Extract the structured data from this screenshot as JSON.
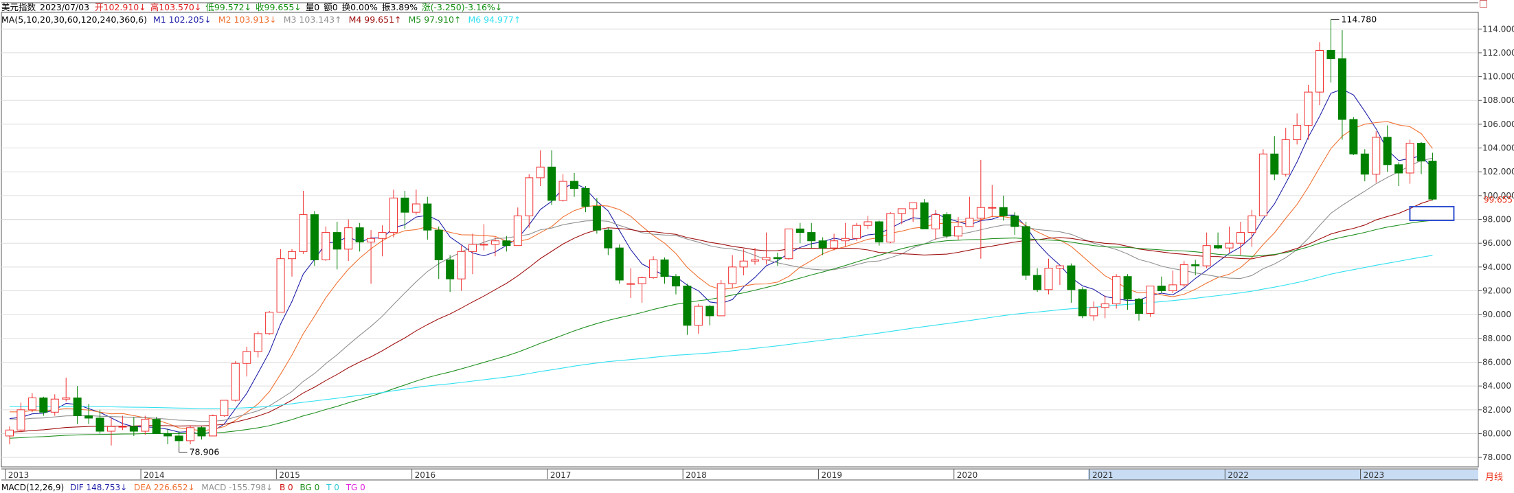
{
  "header": {
    "instrument": "美元指数",
    "date": "2023/07/03",
    "open": "开102.910↓",
    "high": "高103.570↓",
    "low": "低99.572↓",
    "close": "收99.655↓",
    "volume": "量0",
    "amount": "额0",
    "turnover": "换0.00%",
    "amplitude": "振3.89%",
    "change": "涨(-3.250)-3.16%↓"
  },
  "ma_legend": {
    "label": "MA(5,10,20,30,60,120,240,360,6)",
    "items": [
      {
        "text": "M1 102.205↓",
        "color": "#1f1fa8"
      },
      {
        "text": "M2 103.913↓",
        "color": "#f07030"
      },
      {
        "text": "M3 103.143↑",
        "color": "#909090"
      },
      {
        "text": "M4 99.651↑",
        "color": "#a01010"
      },
      {
        "text": "M5 97.910↑",
        "color": "#209020"
      },
      {
        "text": "M6 94.977↑",
        "color": "#30e0f0"
      }
    ]
  },
  "macd_legend": {
    "label": "MACD(12,26,9)",
    "items": [
      {
        "text": "DIF 148.753↓",
        "color": "#1f1fa8"
      },
      {
        "text": "DEA 226.652↓",
        "color": "#f07030"
      },
      {
        "text": "MACD -155.798↓",
        "color": "#909090"
      },
      {
        "text": "B 0",
        "color": "#d01010"
      },
      {
        "text": "BG 0",
        "color": "#209020"
      },
      {
        "text": "T 0",
        "color": "#30c8d8"
      },
      {
        "text": "TG 0",
        "color": "#e020e0"
      }
    ]
  },
  "period": "月线",
  "colors": {
    "up": "#f03030",
    "down": "#008000",
    "grid": "#dddddd",
    "axis": "#555555",
    "price_marker": "#e8321c",
    "selection": "#3050d0",
    "selection_fill": "#c8dcf4"
  },
  "chart_data": {
    "type": "candlestick",
    "title": "美元指数",
    "period": "monthly",
    "start": "2013-01",
    "y_ticks": [
      "78.000",
      "80.000",
      "82.000",
      "84.000",
      "86.000",
      "88.000",
      "90.000",
      "92.000",
      "94.000",
      "96.000",
      "98.000",
      "100.000",
      "102.000",
      "104.000",
      "106.000",
      "108.000",
      "110.000",
      "112.000",
      "114.000"
    ],
    "ylim": [
      77.2,
      115.4
    ],
    "x_ticks": [
      "2013",
      "2014",
      "2015",
      "2016",
      "2017",
      "2018",
      "2019",
      "2020",
      "2021",
      "2022",
      "2023"
    ],
    "annotations": {
      "high": "114.780",
      "low": "78.906",
      "last_price": "99.655"
    },
    "ohlc": [
      [
        79.8,
        80.6,
        79.1,
        80.3
      ],
      [
        80.3,
        82.6,
        80.1,
        82.0
      ],
      [
        82.0,
        83.4,
        81.8,
        83.0
      ],
      [
        83.0,
        83.1,
        81.5,
        81.8
      ],
      [
        81.8,
        83.3,
        81.5,
        82.9
      ],
      [
        82.9,
        84.7,
        82.7,
        83.0
      ],
      [
        83.0,
        84.0,
        80.8,
        81.5
      ],
      [
        81.5,
        82.5,
        80.8,
        81.3
      ],
      [
        81.3,
        82.0,
        80.0,
        80.2
      ],
      [
        80.2,
        81.3,
        79.0,
        80.6
      ],
      [
        80.6,
        81.5,
        80.3,
        80.6
      ],
      [
        80.6,
        81.4,
        79.8,
        80.2
      ],
      [
        80.2,
        81.5,
        79.9,
        81.2
      ],
      [
        81.2,
        81.4,
        80.0,
        80.0
      ],
      [
        80.0,
        80.4,
        79.1,
        79.8
      ],
      [
        79.8,
        80.2,
        78.9,
        79.4
      ],
      [
        79.4,
        80.7,
        79.1,
        80.5
      ],
      [
        80.5,
        80.6,
        79.5,
        79.8
      ],
      [
        79.8,
        81.6,
        79.8,
        81.5
      ],
      [
        81.5,
        82.8,
        81.4,
        82.8
      ],
      [
        82.8,
        86.1,
        82.7,
        85.9
      ],
      [
        85.9,
        87.3,
        84.8,
        86.9
      ],
      [
        86.9,
        88.6,
        86.4,
        88.4
      ],
      [
        88.4,
        90.3,
        88.3,
        90.2
      ],
      [
        90.2,
        95.5,
        90.2,
        94.7
      ],
      [
        94.7,
        95.5,
        93.2,
        95.3
      ],
      [
        95.3,
        100.4,
        95.1,
        98.4
      ],
      [
        98.4,
        98.7,
        94.1,
        94.6
      ],
      [
        94.6,
        97.4,
        94.5,
        96.9
      ],
      [
        96.9,
        97.8,
        93.8,
        95.5
      ],
      [
        95.5,
        98.0,
        94.5,
        97.3
      ],
      [
        97.3,
        97.7,
        95.3,
        96.1
      ],
      [
        96.1,
        97.1,
        92.6,
        96.4
      ],
      [
        96.4,
        97.5,
        94.9,
        96.9
      ],
      [
        96.9,
        100.5,
        96.5,
        99.8
      ],
      [
        99.8,
        100.4,
        97.2,
        98.6
      ],
      [
        98.6,
        100.5,
        98.4,
        99.3
      ],
      [
        99.3,
        99.9,
        96.3,
        97.1
      ],
      [
        97.1,
        97.4,
        93.0,
        94.6
      ],
      [
        94.6,
        95.0,
        91.9,
        93.0
      ],
      [
        93.0,
        95.8,
        92.0,
        95.3
      ],
      [
        95.3,
        96.8,
        93.4,
        95.9
      ],
      [
        95.9,
        97.6,
        95.4,
        95.9
      ],
      [
        95.9,
        96.5,
        94.9,
        96.2
      ],
      [
        96.2,
        96.6,
        95.3,
        95.8
      ],
      [
        95.8,
        99.0,
        95.8,
        98.3
      ],
      [
        98.3,
        101.8,
        97.3,
        101.5
      ],
      [
        101.5,
        103.8,
        100.8,
        102.4
      ],
      [
        102.4,
        103.8,
        99.2,
        99.6
      ],
      [
        99.6,
        101.8,
        99.5,
        101.2
      ],
      [
        101.2,
        101.9,
        99.9,
        100.6
      ],
      [
        100.6,
        100.8,
        98.6,
        99.1
      ],
      [
        99.1,
        99.8,
        96.8,
        97.1
      ],
      [
        97.1,
        97.3,
        95.0,
        95.6
      ],
      [
        95.6,
        95.9,
        92.6,
        92.9
      ],
      [
        92.6,
        93.9,
        91.4,
        92.6
      ],
      [
        92.6,
        93.2,
        91.0,
        93.1
      ],
      [
        93.1,
        94.9,
        93.0,
        94.6
      ],
      [
        94.6,
        94.8,
        92.6,
        93.2
      ],
      [
        93.2,
        93.4,
        91.7,
        92.4
      ],
      [
        92.4,
        92.6,
        88.3,
        89.1
      ],
      [
        89.1,
        90.9,
        88.4,
        90.7
      ],
      [
        90.7,
        90.8,
        89.1,
        89.9
      ],
      [
        89.9,
        92.9,
        89.9,
        92.6
      ],
      [
        92.6,
        95.0,
        92.2,
        94.0
      ],
      [
        94.0,
        95.5,
        93.3,
        94.5
      ],
      [
        94.5,
        95.6,
        94.2,
        94.6
      ],
      [
        94.6,
        96.9,
        94.2,
        94.8
      ],
      [
        94.8,
        95.2,
        94.1,
        94.7
      ],
      [
        94.7,
        97.2,
        94.6,
        97.2
      ],
      [
        97.2,
        97.7,
        96.0,
        96.9
      ],
      [
        96.9,
        97.7,
        95.6,
        96.2
      ],
      [
        96.2,
        96.5,
        95.0,
        95.6
      ],
      [
        95.6,
        96.8,
        95.4,
        96.2
      ],
      [
        96.2,
        97.7,
        95.7,
        96.4
      ],
      [
        96.4,
        97.7,
        96.2,
        97.5
      ],
      [
        97.5,
        98.3,
        97.2,
        97.8
      ],
      [
        97.8,
        97.9,
        95.8,
        96.1
      ],
      [
        96.1,
        98.6,
        96.0,
        98.5
      ],
      [
        98.5,
        98.9,
        97.6,
        98.9
      ],
      [
        98.9,
        99.4,
        97.8,
        99.4
      ],
      [
        99.4,
        99.7,
        97.3,
        97.2
      ],
      [
        97.2,
        98.8,
        96.3,
        98.4
      ],
      [
        98.4,
        98.6,
        96.4,
        96.6
      ],
      [
        96.6,
        98.2,
        96.3,
        97.4
      ],
      [
        97.4,
        99.9,
        97.5,
        98.1
      ],
      [
        98.1,
        103.0,
        94.7,
        99.0
      ],
      [
        99.0,
        100.9,
        98.2,
        99.0
      ],
      [
        99.0,
        100.0,
        97.9,
        98.3
      ],
      [
        98.3,
        98.6,
        96.7,
        97.4
      ],
      [
        97.4,
        97.8,
        92.9,
        93.3
      ],
      [
        93.3,
        93.9,
        91.9,
        92.1
      ],
      [
        92.1,
        94.7,
        91.7,
        93.9
      ],
      [
        93.9,
        94.1,
        92.5,
        94.1
      ],
      [
        94.1,
        94.3,
        91.0,
        92.1
      ],
      [
        92.1,
        92.3,
        89.7,
        89.9
      ],
      [
        89.9,
        91.1,
        89.5,
        90.6
      ],
      [
        90.6,
        91.6,
        89.7,
        90.9
      ],
      [
        90.9,
        93.4,
        90.5,
        93.2
      ],
      [
        93.2,
        93.4,
        90.4,
        91.3
      ],
      [
        91.3,
        91.4,
        89.5,
        90.1
      ],
      [
        90.1,
        92.4,
        89.8,
        92.4
      ],
      [
        92.4,
        93.2,
        91.8,
        92.0
      ],
      [
        92.0,
        93.7,
        91.8,
        92.5
      ],
      [
        92.5,
        94.5,
        92.3,
        94.2
      ],
      [
        94.2,
        94.6,
        93.3,
        94.1
      ],
      [
        94.1,
        96.9,
        93.9,
        95.8
      ],
      [
        95.8,
        96.9,
        95.5,
        95.6
      ],
      [
        95.6,
        97.4,
        95.2,
        96.0
      ],
      [
        96.0,
        97.8,
        95.0,
        96.9
      ],
      [
        96.9,
        98.8,
        95.7,
        98.3
      ],
      [
        98.3,
        103.9,
        98.3,
        103.5
      ],
      [
        103.5,
        105.0,
        101.3,
        101.8
      ],
      [
        101.8,
        105.7,
        101.6,
        104.7
      ],
      [
        104.7,
        106.9,
        104.3,
        105.9
      ],
      [
        105.9,
        109.3,
        104.7,
        108.7
      ],
      [
        108.7,
        112.9,
        107.6,
        112.2
      ],
      [
        112.2,
        114.8,
        109.5,
        111.5
      ],
      [
        111.5,
        113.9,
        104.7,
        106.4
      ],
      [
        106.4,
        106.6,
        103.4,
        103.5
      ],
      [
        103.5,
        103.9,
        101.2,
        101.8
      ],
      [
        101.8,
        105.4,
        101.1,
        104.9
      ],
      [
        104.9,
        105.9,
        102.0,
        102.6
      ],
      [
        102.6,
        102.8,
        100.8,
        101.9
      ],
      [
        101.9,
        104.7,
        101.0,
        104.4
      ],
      [
        104.4,
        104.5,
        101.8,
        102.9
      ],
      [
        102.9,
        103.6,
        99.6,
        99.7
      ]
    ],
    "ma_series": [
      {
        "name": "M1",
        "period": 5,
        "color": "#1f1fa8"
      },
      {
        "name": "M2",
        "period": 10,
        "color": "#f07030"
      },
      {
        "name": "M3",
        "period": 20,
        "color": "#909090"
      },
      {
        "name": "M4",
        "period": 30,
        "color": "#a01010"
      },
      {
        "name": "M5",
        "period": 60,
        "color": "#209020"
      },
      {
        "name": "M6",
        "period": 120,
        "color": "#30e0f0"
      }
    ],
    "ma_warmup": {
      "M1": 81.5,
      "M2": 82.0,
      "M3": 81.2,
      "M4": 80.1,
      "M5": 79.6,
      "M6": 82.3
    },
    "ma_last": {
      "M3": 103.143,
      "M4": 99.651,
      "M5": 97.91,
      "M6": 94.977
    }
  }
}
